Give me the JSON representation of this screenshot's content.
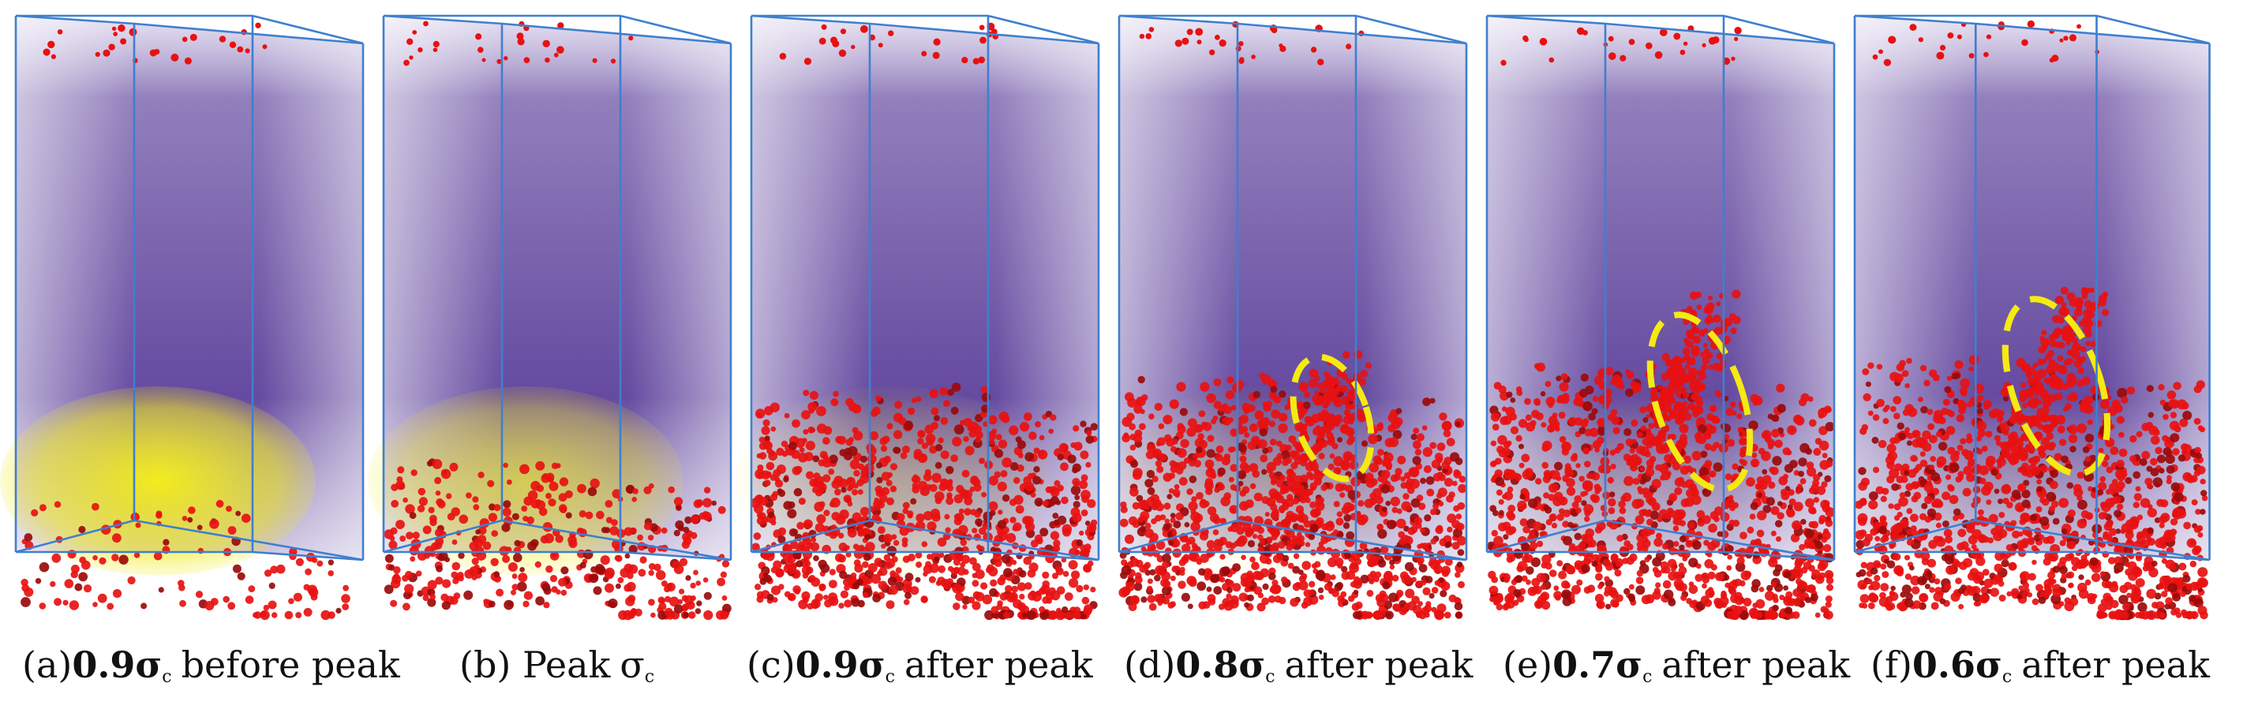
{
  "colors": {
    "box_edge": "#3f7fcf",
    "volume_top": "#c9bfe3",
    "volume_core": "#4a2a8f",
    "strain_yellow": "#f2ec1e",
    "particles": "#e81111",
    "particle_dark": "#9a0a0a",
    "annotation_ellipse": "#f5ea12"
  },
  "panels": [
    {
      "label": "(a)",
      "value": "0.9",
      "symbol": "σ",
      "subscript": "c",
      "suffix": "before peak",
      "cracked_fraction": 0.05,
      "yellow_level": 0.95,
      "ellipse": false
    },
    {
      "label": "(b) Peak",
      "value": "",
      "symbol": "σ",
      "subscript": "c",
      "suffix": "",
      "cracked_fraction": 0.3,
      "yellow_level": 0.6,
      "ellipse": false
    },
    {
      "label": "(c)",
      "value": "0.9",
      "symbol": "σ",
      "subscript": "c",
      "suffix": "after peak",
      "cracked_fraction": 0.8,
      "yellow_level": 0.2,
      "ellipse": false
    },
    {
      "label": "(d)",
      "value": "0.8",
      "symbol": "σ",
      "subscript": "c",
      "suffix": "after peak",
      "cracked_fraction": 0.9,
      "yellow_level": 0.12,
      "ellipse": true
    },
    {
      "label": "(e)",
      "value": "0.7",
      "symbol": "σ",
      "subscript": "c",
      "suffix": "after peak",
      "cracked_fraction": 0.95,
      "yellow_level": 0.05,
      "ellipse": true
    },
    {
      "label": "(f)",
      "value": "0.6",
      "symbol": "σ",
      "subscript": "c",
      "suffix": "after peak",
      "cracked_fraction": 1.0,
      "yellow_level": 0.02,
      "ellipse": true
    }
  ]
}
